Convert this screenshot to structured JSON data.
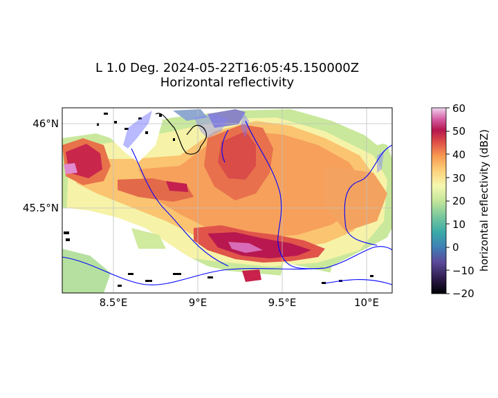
{
  "figure": {
    "title_line1": "L 1.0 Deg. 2024-05-22T16:05:45.150000Z",
    "title_line2": "Horizontal reflectivity"
  },
  "map": {
    "lon_range": [
      8.2,
      10.15
    ],
    "lat_range": [
      45.18,
      46.11
    ],
    "lon_ticks": [
      {
        "value": 8.5,
        "label": "8.5°E"
      },
      {
        "value": 9.0,
        "label": "9°E"
      },
      {
        "value": 9.5,
        "label": "9.5°E"
      },
      {
        "value": 10.0,
        "label": "10°E"
      }
    ],
    "lat_ticks": [
      {
        "value": 46.0,
        "label": "46°N"
      },
      {
        "value": 45.5,
        "label": "45.5°N"
      }
    ],
    "gridlines": true,
    "colors": {
      "rivers": "#0000ff",
      "border": "#000000",
      "gridline": "#bfbfbf"
    }
  },
  "colorbar": {
    "label": "horizontal reflectivity (dBZ)",
    "colormap": "Spectral_r-like",
    "range": [
      -20,
      60
    ],
    "ticks": [
      "60",
      "50",
      "40",
      "30",
      "20",
      "10",
      "0",
      "−10",
      "−20"
    ]
  },
  "chart_data": {
    "type": "heatmap",
    "variable": "horizontal reflectivity (dBZ)",
    "title": "L 1.0 Deg. 2024-05-22T16:05:45.150000Z",
    "subtitle": "Horizontal reflectivity",
    "x_axis": "longitude",
    "y_axis": "latitude",
    "xlim": [
      8.2,
      10.15
    ],
    "ylim": [
      45.18,
      46.11
    ],
    "zlim": [
      -20,
      60
    ],
    "dominant_values": "about 25–40 dBZ over the central area, with cores near 45–55 dBZ"
  }
}
